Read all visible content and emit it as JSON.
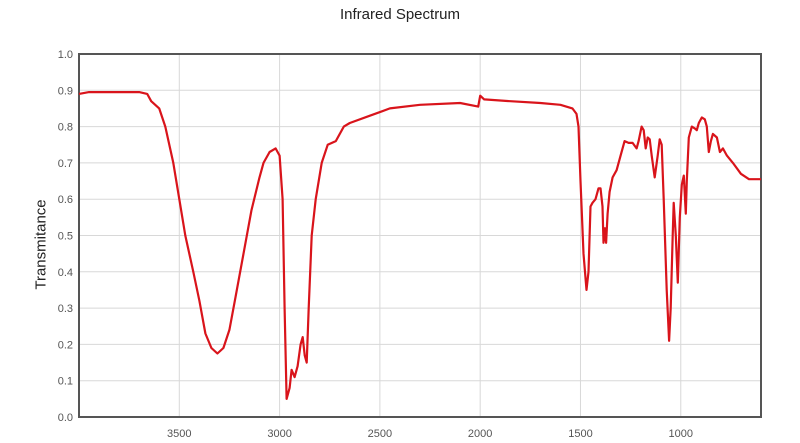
{
  "chart_data": {
    "type": "line",
    "title": "Infrared Spectrum",
    "xlabel": "",
    "ylabel": "Transmitance",
    "xlim": [
      4000,
      600
    ],
    "ylim": [
      0,
      1.0
    ],
    "grid": true,
    "x_ticks": [
      3500,
      3000,
      2500,
      2000,
      1500,
      1000
    ],
    "y_ticks": [
      "0.0",
      "0.1",
      "0.2",
      "0.3",
      "0.4",
      "0.5",
      "0.6",
      "0.7",
      "0.8",
      "0.9",
      "1.0"
    ],
    "line_color": "#d9141b",
    "series": [
      {
        "name": "spectrum",
        "points": [
          [
            4000,
            0.89
          ],
          [
            3950,
            0.895
          ],
          [
            3700,
            0.895
          ],
          [
            3660,
            0.89
          ],
          [
            3640,
            0.87
          ],
          [
            3600,
            0.85
          ],
          [
            3570,
            0.8
          ],
          [
            3530,
            0.7
          ],
          [
            3500,
            0.6
          ],
          [
            3470,
            0.5
          ],
          [
            3430,
            0.4
          ],
          [
            3400,
            0.32
          ],
          [
            3370,
            0.23
          ],
          [
            3340,
            0.19
          ],
          [
            3310,
            0.175
          ],
          [
            3280,
            0.19
          ],
          [
            3250,
            0.24
          ],
          [
            3220,
            0.33
          ],
          [
            3180,
            0.45
          ],
          [
            3140,
            0.57
          ],
          [
            3100,
            0.66
          ],
          [
            3080,
            0.7
          ],
          [
            3050,
            0.73
          ],
          [
            3020,
            0.74
          ],
          [
            3000,
            0.72
          ],
          [
            2985,
            0.6
          ],
          [
            2975,
            0.3
          ],
          [
            2965,
            0.05
          ],
          [
            2950,
            0.08
          ],
          [
            2940,
            0.13
          ],
          [
            2925,
            0.11
          ],
          [
            2910,
            0.14
          ],
          [
            2895,
            0.2
          ],
          [
            2885,
            0.22
          ],
          [
            2875,
            0.17
          ],
          [
            2865,
            0.15
          ],
          [
            2855,
            0.3
          ],
          [
            2840,
            0.5
          ],
          [
            2820,
            0.6
          ],
          [
            2790,
            0.7
          ],
          [
            2760,
            0.75
          ],
          [
            2720,
            0.76
          ],
          [
            2680,
            0.8
          ],
          [
            2650,
            0.81
          ],
          [
            2550,
            0.83
          ],
          [
            2450,
            0.85
          ],
          [
            2300,
            0.86
          ],
          [
            2100,
            0.865
          ],
          [
            2010,
            0.855
          ],
          [
            2000,
            0.885
          ],
          [
            1980,
            0.875
          ],
          [
            1850,
            0.87
          ],
          [
            1700,
            0.865
          ],
          [
            1600,
            0.86
          ],
          [
            1540,
            0.85
          ],
          [
            1520,
            0.835
          ],
          [
            1510,
            0.8
          ],
          [
            1500,
            0.65
          ],
          [
            1485,
            0.45
          ],
          [
            1470,
            0.35
          ],
          [
            1460,
            0.4
          ],
          [
            1450,
            0.58
          ],
          [
            1440,
            0.59
          ],
          [
            1425,
            0.6
          ],
          [
            1410,
            0.63
          ],
          [
            1400,
            0.63
          ],
          [
            1390,
            0.58
          ],
          [
            1385,
            0.48
          ],
          [
            1378,
            0.52
          ],
          [
            1372,
            0.48
          ],
          [
            1365,
            0.56
          ],
          [
            1355,
            0.62
          ],
          [
            1340,
            0.66
          ],
          [
            1320,
            0.68
          ],
          [
            1300,
            0.72
          ],
          [
            1280,
            0.76
          ],
          [
            1260,
            0.755
          ],
          [
            1240,
            0.755
          ],
          [
            1220,
            0.74
          ],
          [
            1210,
            0.76
          ],
          [
            1195,
            0.8
          ],
          [
            1185,
            0.79
          ],
          [
            1175,
            0.74
          ],
          [
            1165,
            0.77
          ],
          [
            1155,
            0.765
          ],
          [
            1145,
            0.72
          ],
          [
            1130,
            0.66
          ],
          [
            1115,
            0.72
          ],
          [
            1105,
            0.765
          ],
          [
            1095,
            0.75
          ],
          [
            1085,
            0.6
          ],
          [
            1070,
            0.35
          ],
          [
            1058,
            0.21
          ],
          [
            1050,
            0.3
          ],
          [
            1040,
            0.5
          ],
          [
            1035,
            0.59
          ],
          [
            1025,
            0.5
          ],
          [
            1015,
            0.37
          ],
          [
            1005,
            0.55
          ],
          [
            995,
            0.64
          ],
          [
            985,
            0.665
          ],
          [
            975,
            0.56
          ],
          [
            970,
            0.65
          ],
          [
            960,
            0.77
          ],
          [
            945,
            0.8
          ],
          [
            930,
            0.795
          ],
          [
            920,
            0.79
          ],
          [
            910,
            0.81
          ],
          [
            895,
            0.825
          ],
          [
            880,
            0.82
          ],
          [
            870,
            0.8
          ],
          [
            860,
            0.73
          ],
          [
            850,
            0.76
          ],
          [
            840,
            0.78
          ],
          [
            820,
            0.77
          ],
          [
            805,
            0.73
          ],
          [
            790,
            0.74
          ],
          [
            770,
            0.72
          ],
          [
            740,
            0.7
          ],
          [
            700,
            0.67
          ],
          [
            660,
            0.655
          ],
          [
            600,
            0.655
          ]
        ]
      }
    ]
  }
}
